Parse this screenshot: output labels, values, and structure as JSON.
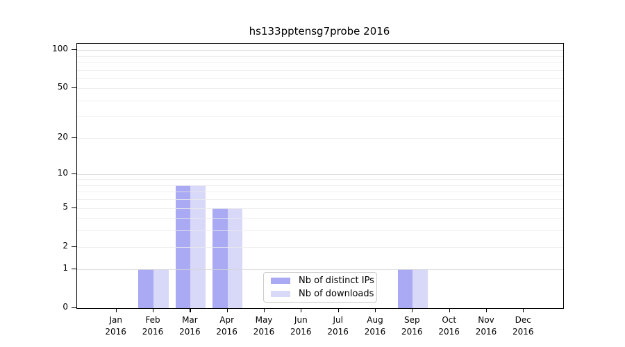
{
  "chart_data": {
    "type": "bar",
    "title": "hs133pptensg7probe 2016",
    "categories": [
      "Jan",
      "Feb",
      "Mar",
      "Apr",
      "May",
      "Jun",
      "Jul",
      "Aug",
      "Sep",
      "Oct",
      "Nov",
      "Dec"
    ],
    "category_year": "2016",
    "series": [
      {
        "name": "Nb of distinct IPs",
        "color": "#a9a9f4",
        "values": [
          0,
          1,
          8,
          5,
          0,
          0,
          0,
          0,
          1,
          0,
          0,
          0
        ]
      },
      {
        "name": "Nb of downloads",
        "color": "#d8d8f8",
        "values": [
          0,
          1,
          8,
          5,
          0,
          0,
          0,
          0,
          1,
          0,
          0,
          0
        ]
      }
    ],
    "yscale": "log1p",
    "ylim": [
      0,
      112
    ],
    "yticks": [
      0,
      1,
      2,
      5,
      10,
      20,
      50,
      100
    ],
    "grid_major": [
      1,
      10,
      100
    ],
    "grid_minor": [
      2,
      3,
      4,
      5,
      6,
      7,
      8,
      9,
      20,
      30,
      40,
      50,
      60,
      70,
      80,
      90
    ],
    "grid": "horizontal",
    "legend_position": "inside-bottom-center",
    "colors": {
      "grid_major": "#d4d4d4",
      "grid_minor": "#ebebeb",
      "axis": "#000000",
      "legend_border": "#cccccc",
      "background": "#ffffff"
    }
  }
}
